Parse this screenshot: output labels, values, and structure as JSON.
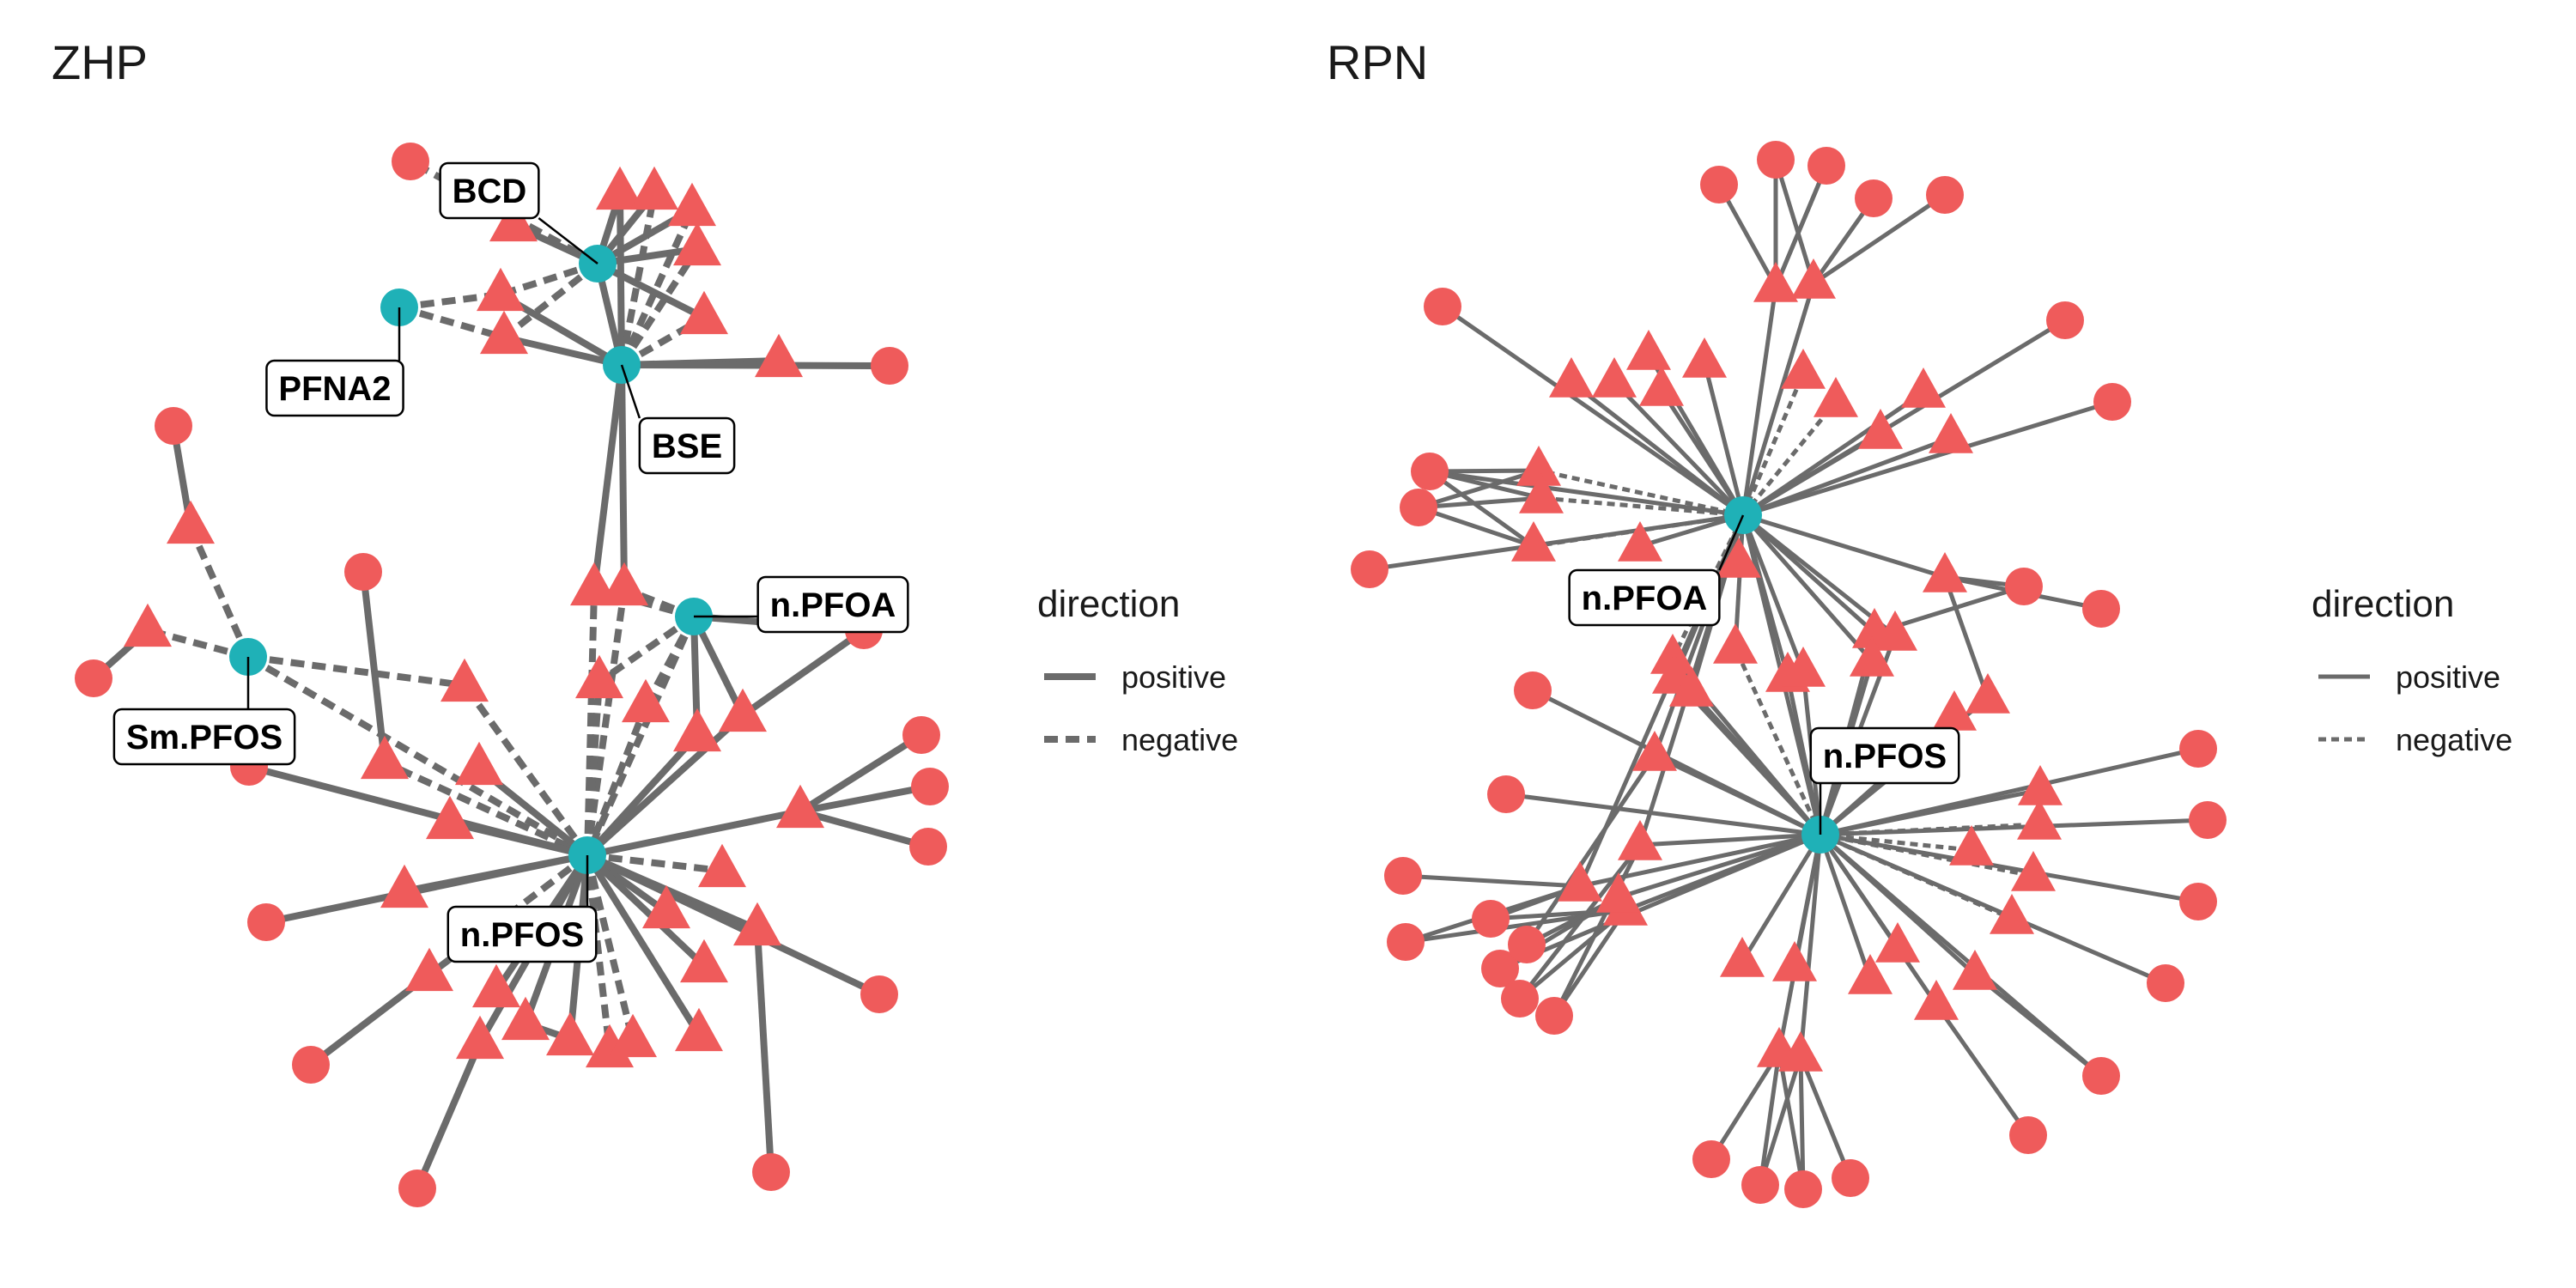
{
  "colors": {
    "hub": "#1fb1b7",
    "leaf": "#ef5b5b",
    "edge": "#6b6b6b",
    "label_border": "#000000",
    "text": "#1a1a1a"
  },
  "panels": [
    {
      "title": "ZHP",
      "legend": {
        "title": "direction",
        "items": [
          "positive",
          "negative"
        ]
      }
    },
    {
      "title": "RPN",
      "legend": {
        "title": "direction",
        "items": [
          "positive",
          "negative"
        ]
      }
    }
  ],
  "hub_labels": {
    "zhp": [
      "BCD",
      "PFNA2",
      "BSE",
      "n.PFOA",
      "Sm.PFOS",
      "n.PFOS"
    ],
    "rpn": [
      "n.PFOA",
      "n.PFOS"
    ]
  }
}
